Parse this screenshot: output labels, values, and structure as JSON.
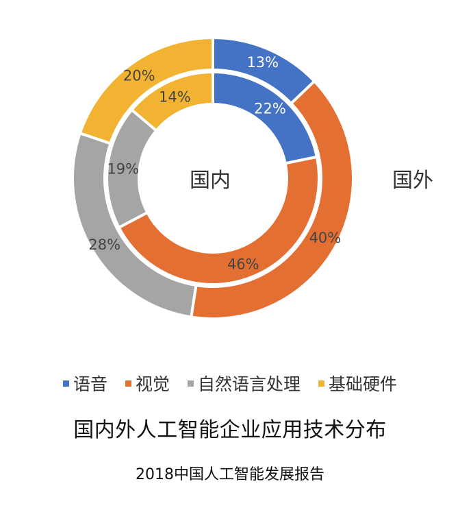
{
  "chart_data": {
    "type": "donut",
    "rings": [
      {
        "name": "国外",
        "values": [
          13,
          40,
          28,
          20
        ],
        "labels": [
          "13%",
          "40%",
          "28%",
          "20%"
        ]
      },
      {
        "name": "国内",
        "values": [
          22,
          46,
          19,
          14
        ],
        "labels": [
          "22%",
          "46%",
          "19%",
          "14%"
        ]
      }
    ],
    "categories": [
      "语音",
      "视觉",
      "自然语言处理",
      "基础硬件"
    ],
    "colors": [
      "#4472C4",
      "#E46F33",
      "#A5A5A5",
      "#F2B232"
    ],
    "legend_position": "bottom",
    "title": "国内外人工智能企业应用技术分布",
    "source": "2018中国人工智能发展报告"
  }
}
